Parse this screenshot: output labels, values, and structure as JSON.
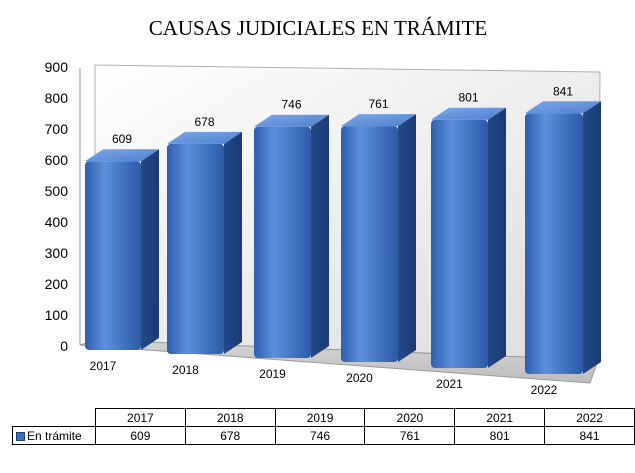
{
  "chart_data": {
    "type": "bar",
    "title": "CAUSAS JUDICIALES EN TRÁMITE",
    "categories": [
      "2017",
      "2018",
      "2019",
      "2020",
      "2021",
      "2022"
    ],
    "series": [
      {
        "name": "En trámite",
        "values": [
          609,
          678,
          746,
          761,
          801,
          841
        ]
      }
    ],
    "ylim": [
      0,
      900
    ],
    "yticks": [
      "0",
      "100",
      "200",
      "300",
      "400",
      "500",
      "600",
      "700",
      "800",
      "900"
    ],
    "grid": false,
    "style": "3d-column",
    "data_table": true,
    "colors": {
      "bar": "#3a6fc4",
      "bar_dark": "#1f4a8f",
      "bar_light": "#6d9be0"
    }
  }
}
